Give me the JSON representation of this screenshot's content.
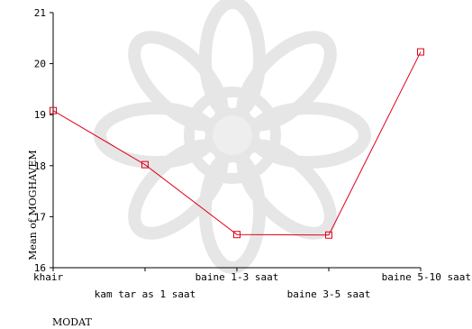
{
  "chart_data": {
    "type": "line",
    "title": "",
    "xlabel": "MODAT",
    "ylabel": "Mean of MOGHAVEM",
    "categories": [
      "khair",
      "kam tar as 1 saat",
      "baine 1-3 saat",
      "baine 3-5 saat",
      "baine 5-10 saat"
    ],
    "series": [
      {
        "name": "",
        "values": [
          19.08,
          18.02,
          16.65,
          16.64,
          20.23
        ]
      }
    ],
    "ylim": [
      16,
      21
    ],
    "yticks": [
      16,
      17,
      18,
      19,
      20,
      21
    ],
    "grid": false,
    "legend": "none",
    "colors": {
      "line": "#e0001b",
      "marker": "#e0001b",
      "axis": "#000000",
      "text": "#000000"
    },
    "marker": "square-open"
  }
}
